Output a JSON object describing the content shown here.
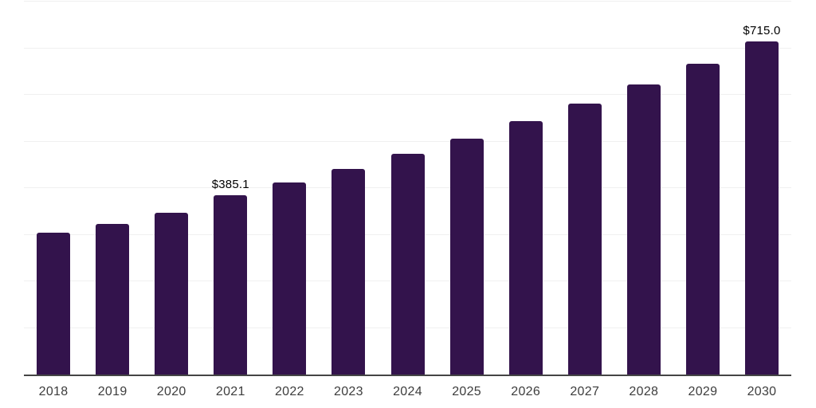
{
  "chart_data": {
    "type": "bar",
    "title": "",
    "xlabel": "",
    "ylabel": "",
    "categories": [
      "2018",
      "2019",
      "2020",
      "2021",
      "2022",
      "2023",
      "2024",
      "2025",
      "2026",
      "2027",
      "2028",
      "2029",
      "2030"
    ],
    "values": [
      304.0,
      323.5,
      347.0,
      385.1,
      412.5,
      441.8,
      473.3,
      506.9,
      543.0,
      581.7,
      623.1,
      667.4,
      715.0
    ],
    "data_labels": {
      "2021": "$385.1",
      "2030": "$715.0"
    },
    "ylim": [
      0,
      800
    ],
    "gridline_step": 100,
    "grid": "horizontal-only",
    "legend_position": "none",
    "y_axis_tick_labels": "none"
  },
  "colors": {
    "bar": "#33134c",
    "gridline": "#f0f0f0",
    "axis_line": "#454545",
    "tick_label": "#3d3d3d",
    "data_label": "#000000",
    "background": "#ffffff"
  }
}
